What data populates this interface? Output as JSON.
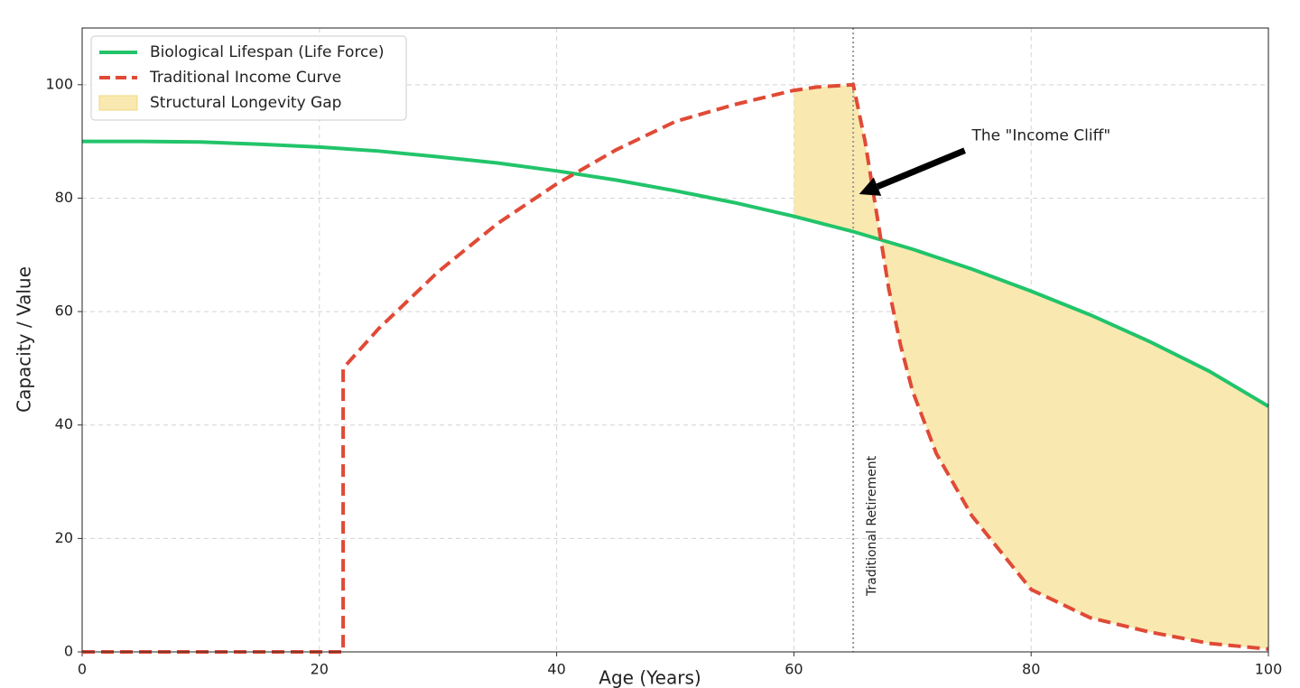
{
  "chart_data": {
    "type": "line",
    "xlabel": "Age (Years)",
    "ylabel": "Capacity / Value",
    "xlim": [
      0,
      100
    ],
    "ylim": [
      0,
      110
    ],
    "xticks": [
      0,
      20,
      40,
      60,
      80,
      100
    ],
    "yticks": [
      0,
      20,
      40,
      60,
      80,
      100
    ],
    "grid": true,
    "legend": "upper left",
    "series": [
      {
        "name": "Biological Lifespan (Life Force)",
        "color": "#22c46a",
        "style": "solid",
        "x": [
          0,
          5,
          10,
          15,
          20,
          25,
          30,
          35,
          40,
          45,
          50,
          55,
          60,
          65,
          70,
          75,
          80,
          85,
          90,
          95,
          100
        ],
        "values": [
          90,
          90,
          89.9,
          89.5,
          89,
          88.3,
          87.3,
          86.2,
          84.8,
          83.2,
          81.3,
          79.2,
          76.8,
          74.1,
          71,
          67.5,
          63.6,
          59.4,
          54.7,
          49.5,
          43.3
        ]
      },
      {
        "name": "Traditional Income Curve",
        "color": "#e04a36",
        "style": "dashed",
        "x": [
          0,
          22,
          22,
          25,
          30,
          35,
          40,
          45,
          50,
          55,
          60,
          62,
          65,
          66,
          67,
          68,
          69,
          70,
          72,
          75,
          80,
          85,
          90,
          95,
          100
        ],
        "values": [
          0,
          0,
          50,
          57,
          67,
          75.5,
          82.5,
          88.5,
          93.5,
          96.5,
          99,
          99.6,
          100,
          90,
          77,
          64,
          54,
          46,
          35,
          24,
          11,
          6,
          3.5,
          1.5,
          0.5
        ]
      }
    ],
    "fill_between": {
      "name": "Structural Longevity Gap",
      "color": "#f9e9b0",
      "from_x": 60
    },
    "vline": {
      "x": 65,
      "label": "Traditional Retirement",
      "color": "#999999"
    },
    "annotation": {
      "text": "The \"Income Cliff\"",
      "xy": [
        65.5,
        80.7
      ],
      "xytext": [
        74.4,
        88.4
      ],
      "text_pos": [
        75,
        91
      ]
    }
  }
}
